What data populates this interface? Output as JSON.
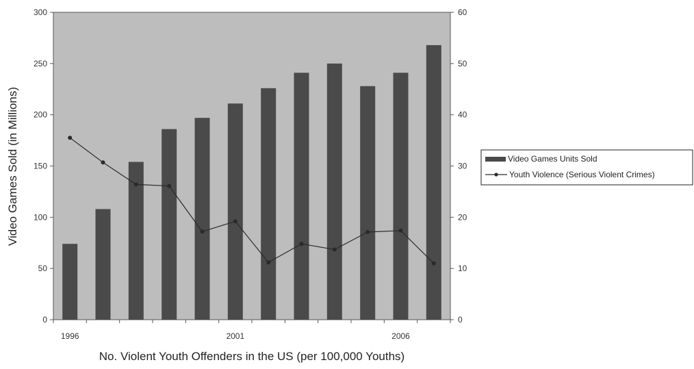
{
  "chart_data": {
    "type": "bar+line",
    "x": [
      1996,
      1997,
      1998,
      1999,
      2000,
      2001,
      2002,
      2003,
      2004,
      2005,
      2006,
      2007
    ],
    "x_tick_labels": [
      "1996",
      "2001",
      "2006"
    ],
    "xlabel": "No. Violent Youth Offenders in the US (per 100,000 Youths)",
    "ylabel": "Video Games Sold (in Millions)",
    "ylim": [
      0,
      300
    ],
    "y_ticks": [
      0,
      50,
      100,
      150,
      200,
      250,
      300
    ],
    "y2lim": [
      0,
      60
    ],
    "y2_ticks": [
      0,
      10,
      20,
      30,
      40,
      50,
      60
    ],
    "grid": false,
    "legend_position": "right",
    "series": [
      {
        "name": "Video Games Units Sold",
        "kind": "bar",
        "axis": "left",
        "color": "#4a4a4a",
        "values": [
          74,
          108,
          154,
          186,
          197,
          211,
          226,
          241,
          250,
          228,
          241,
          268
        ]
      },
      {
        "name": "Youth Violence (Serious Violent Crimes)",
        "kind": "line",
        "axis": "right",
        "color": "#2a2a2a",
        "values": [
          35.5,
          30.7,
          26.4,
          26.1,
          17.2,
          19.2,
          11.2,
          14.8,
          13.7,
          17.1,
          17.4,
          11.0
        ]
      }
    ],
    "plot_background": "#bdbdbd"
  }
}
